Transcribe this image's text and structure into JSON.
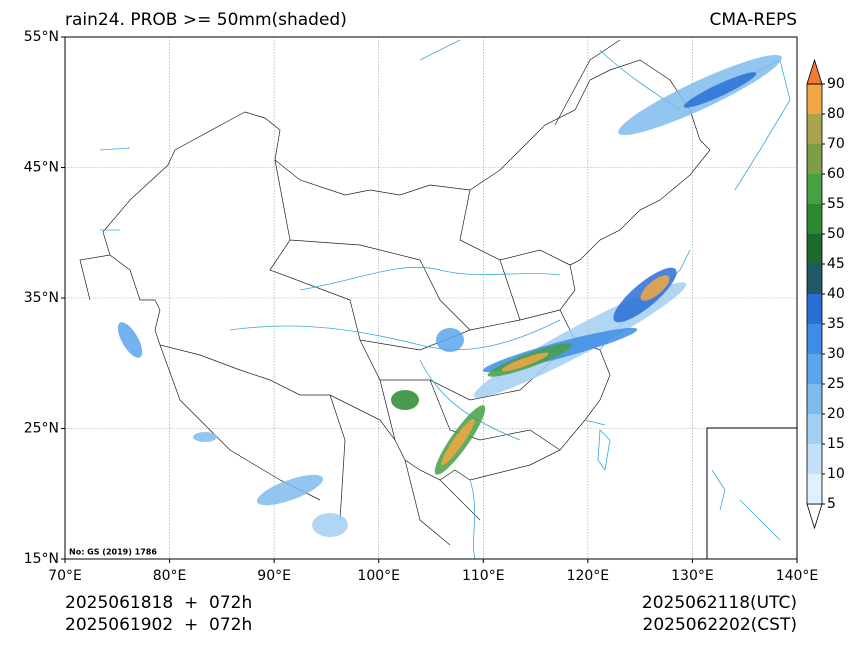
{
  "header": {
    "title": "rain24. PROB >= 50mm(shaded)",
    "source": "CMA-REPS"
  },
  "map": {
    "note": "No: GS (2019) 1786",
    "xlim": [
      70,
      140
    ],
    "ylim": [
      15,
      55
    ],
    "xticks": [
      {
        "value": 70,
        "label": "70°E"
      },
      {
        "value": 80,
        "label": "80°E"
      },
      {
        "value": 90,
        "label": "90°E"
      },
      {
        "value": 100,
        "label": "100°E"
      },
      {
        "value": 110,
        "label": "110°E"
      },
      {
        "value": 120,
        "label": "120°E"
      },
      {
        "value": 130,
        "label": "130°E"
      },
      {
        "value": 140,
        "label": "140°E"
      }
    ],
    "yticks": [
      {
        "value": 15,
        "label": "15°N"
      },
      {
        "value": 25,
        "label": "25°N"
      },
      {
        "value": 35,
        "label": "35°N"
      },
      {
        "value": 45,
        "label": "45°N"
      },
      {
        "value": 55,
        "label": "55°N"
      }
    ],
    "grid": true
  },
  "colorbar": {
    "levels": [
      5,
      10,
      15,
      20,
      25,
      30,
      35,
      40,
      45,
      50,
      55,
      60,
      70,
      80,
      90
    ],
    "colors": [
      "#ffffff",
      "#e1f0fd",
      "#c4e0f8",
      "#a3cff2",
      "#7fbcee",
      "#5aa6ec",
      "#3d8de6",
      "#2a6fd6",
      "#1f5a66",
      "#1d6a2e",
      "#2b8a2f",
      "#46a044",
      "#7e9e45",
      "#a9a24f",
      "#f3a644",
      "#f07a36"
    ]
  },
  "footer": {
    "init_utc": "2025061818  +  072h",
    "init_cst": "2025061902  +  072h",
    "valid_utc": "2025062118(UTC)",
    "valid_cst": "2025062202(CST)"
  }
}
